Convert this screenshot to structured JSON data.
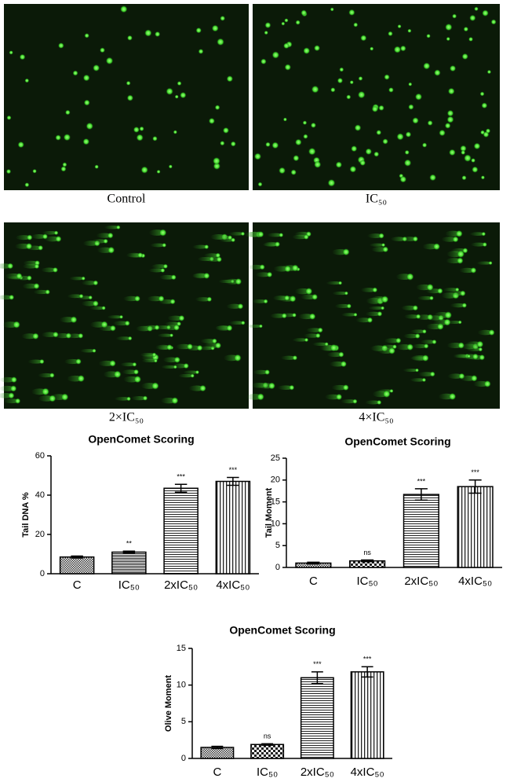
{
  "panels": [
    {
      "label": "Control"
    },
    {
      "label": "IC₅₀"
    },
    {
      "label": "2×IC₅₀"
    },
    {
      "label": "4×IC₅₀"
    }
  ],
  "chart_data": [
    {
      "type": "bar",
      "title": "OpenComet Scoring",
      "y_label": "Tail DNA %",
      "categories": [
        "C",
        "IC₅₀",
        "2xIC₅₀",
        "4xIC₅₀"
      ],
      "values": [
        8.5,
        11,
        43.5,
        47
      ],
      "errors": [
        0.5,
        0.5,
        2,
        2
      ],
      "annotations": [
        null,
        "**",
        "***",
        "***"
      ],
      "ylim": [
        0,
        60
      ],
      "yticks": [
        0,
        20,
        40,
        60
      ]
    },
    {
      "type": "bar",
      "title": "OpenComet Scoring",
      "y_label": "Tail Moment",
      "categories": [
        "C",
        "IC₅₀",
        "2xIC₅₀",
        "4xIC₅₀"
      ],
      "values": [
        1,
        1.5,
        16.7,
        18.5
      ],
      "errors": [
        0.2,
        0.2,
        1.3,
        1.5
      ],
      "annotations": [
        null,
        "ns",
        "***",
        "***"
      ],
      "ylim": [
        0,
        25
      ],
      "yticks": [
        0,
        5,
        10,
        15,
        20,
        25
      ]
    },
    {
      "type": "bar",
      "title": "OpenComet Scoring",
      "y_label": "Olive Moment",
      "categories": [
        "C",
        "IC₅₀",
        "2xIC₅₀",
        "4xIC₅₀"
      ],
      "values": [
        1.5,
        1.9,
        11,
        11.8
      ],
      "errors": [
        0.15,
        0.1,
        0.8,
        0.7
      ],
      "annotations": [
        null,
        "ns",
        "***",
        "***"
      ],
      "ylim": [
        0,
        15
      ],
      "yticks": [
        0,
        5,
        10,
        15
      ]
    }
  ]
}
